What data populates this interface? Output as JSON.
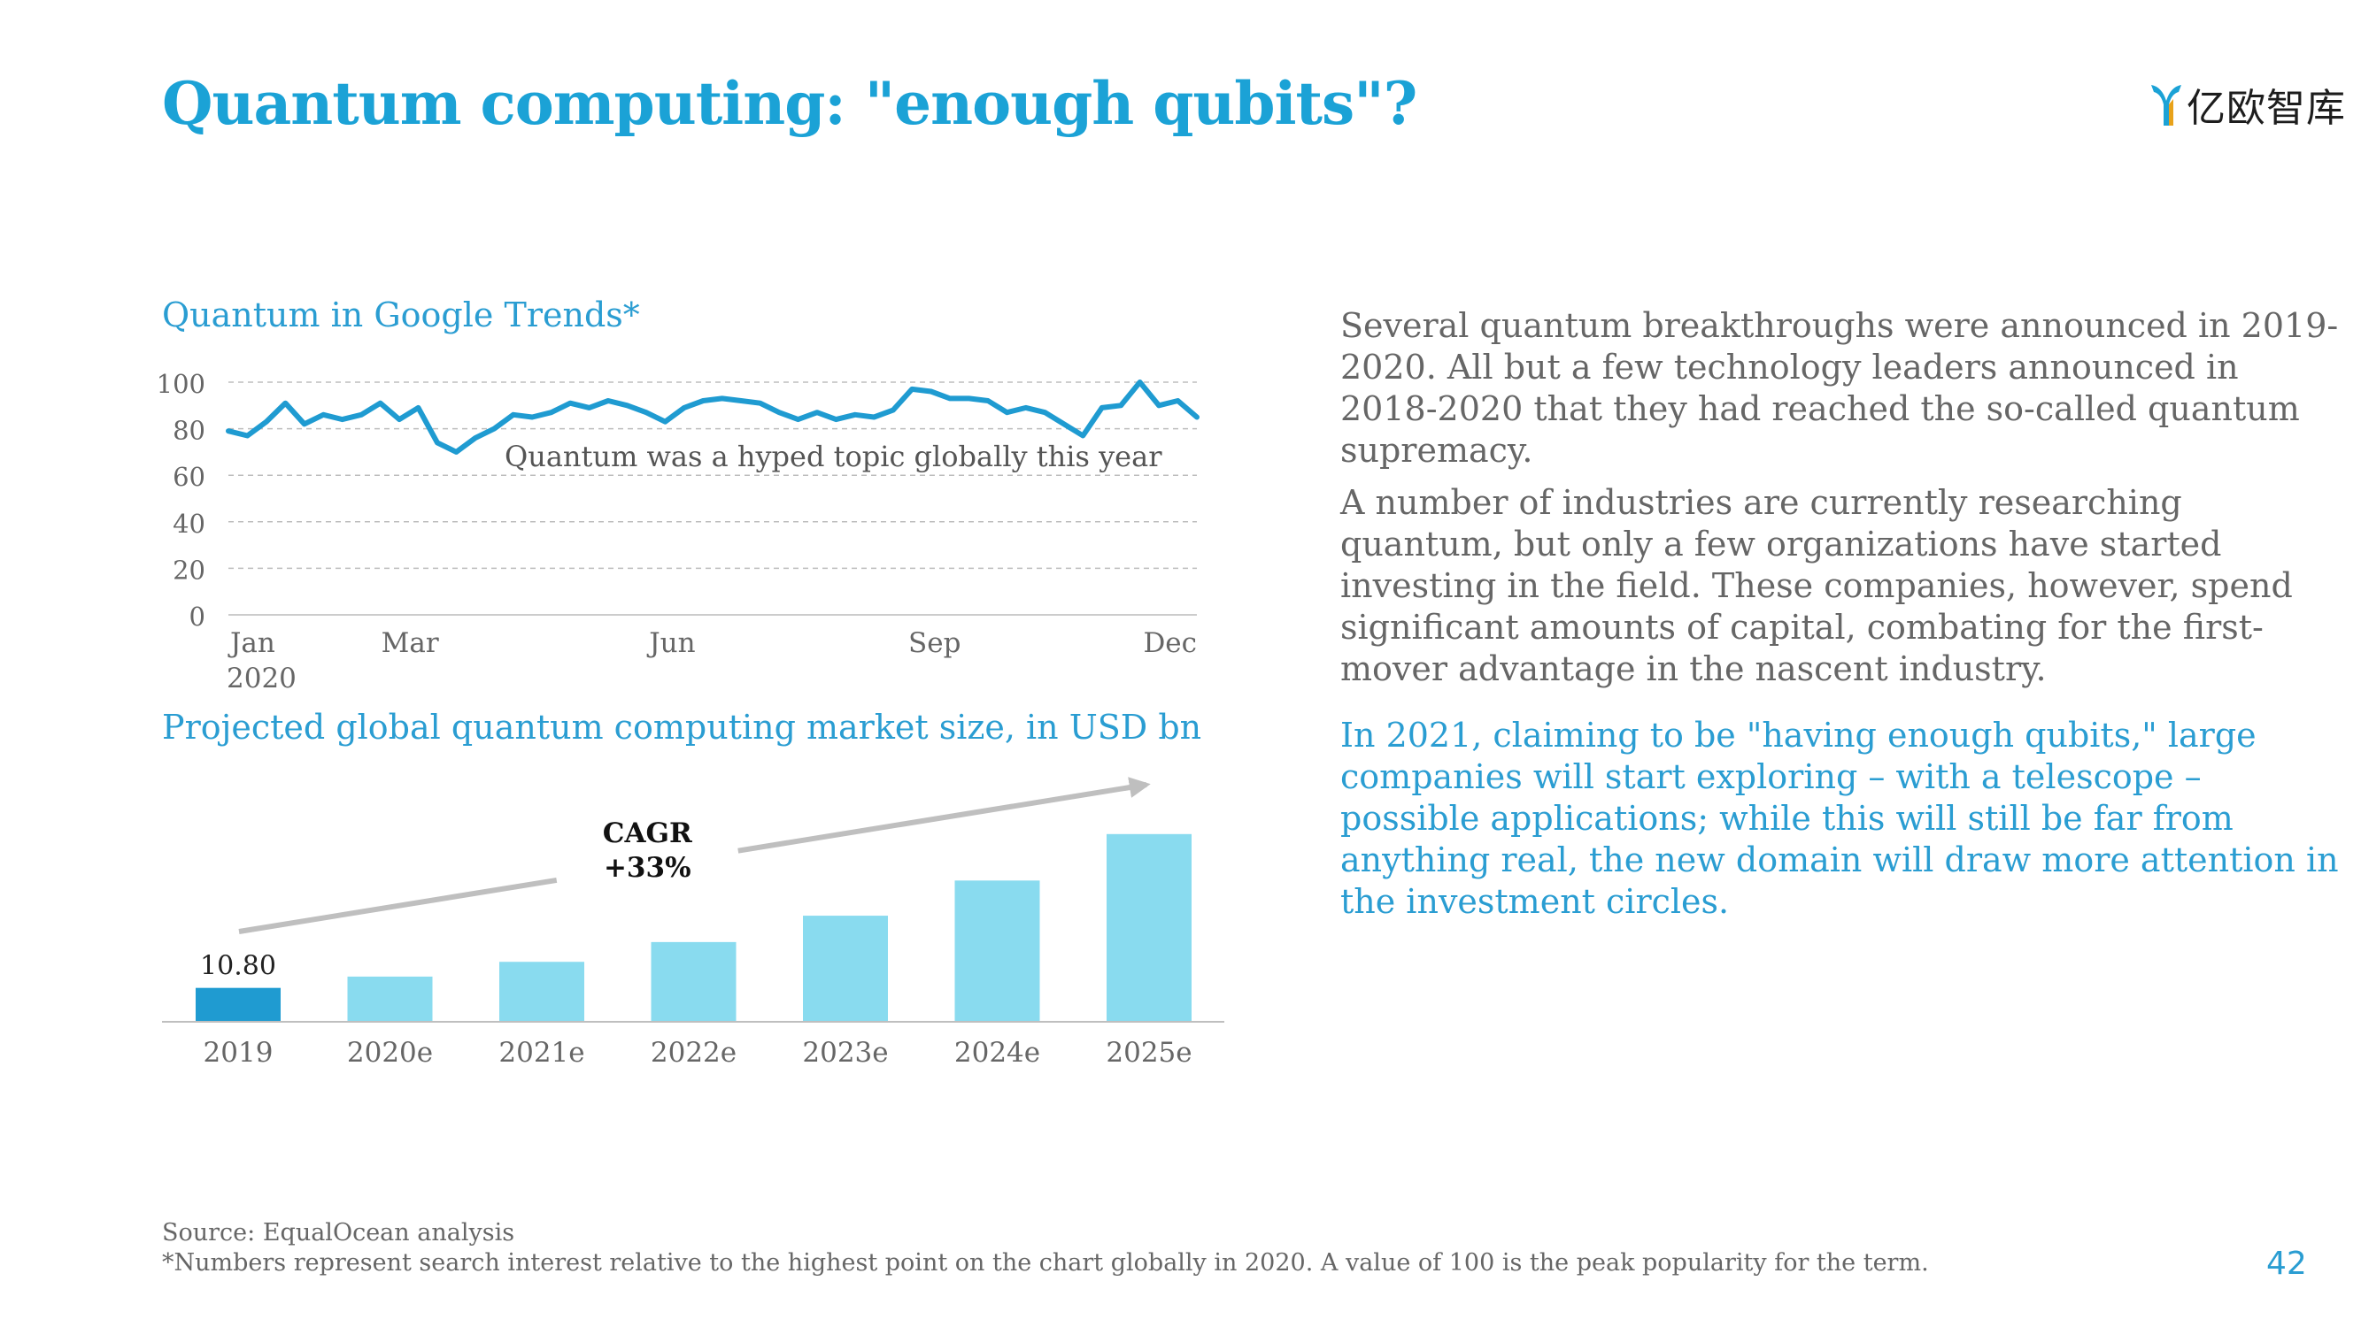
{
  "page": {
    "title": "Quantum computing: \"enough qubits\"?",
    "logo_text": "亿欧智库",
    "page_number": "42"
  },
  "colors": {
    "accent": "#1ba2d6",
    "line": "#1f9bd1",
    "bar_2019": "#1f9bd1",
    "bar_projected": "#89dbef",
    "arrow": "#bfbfbf",
    "body_text": "#666666"
  },
  "chart_data": [
    {
      "type": "line",
      "title": "Quantum in Google Trends*",
      "annotation": "Quantum was a hyped topic globally this year",
      "ylim": [
        0,
        100
      ],
      "yticks": [
        0,
        20,
        40,
        60,
        80,
        100
      ],
      "xlim": [
        0,
        48
      ],
      "xticks": [
        {
          "x": 0,
          "label": "Jan",
          "sublabel": "2020"
        },
        {
          "x": 9,
          "label": "Mar"
        },
        {
          "x": 22,
          "label": "Jun"
        },
        {
          "x": 35,
          "label": "Sep"
        },
        {
          "x": 48,
          "label": "Dec"
        }
      ],
      "grid": true,
      "series": [
        {
          "values": [
            79,
            77,
            83,
            91,
            82,
            86,
            84,
            86,
            91,
            84,
            89,
            74,
            70,
            76,
            80,
            86,
            85,
            87,
            91,
            89,
            92,
            90,
            87,
            83,
            89,
            92,
            93,
            92,
            91,
            87,
            84,
            87,
            84,
            86,
            85,
            88,
            97,
            96,
            93,
            93,
            92,
            87,
            89,
            87,
            82,
            77,
            89,
            90,
            100,
            90,
            92,
            85
          ]
        }
      ]
    },
    {
      "type": "bar",
      "title": "Projected global quantum computing market size, in USD bn",
      "categories": [
        "2019",
        "2020e",
        "2021e",
        "2022e",
        "2023e",
        "2024e",
        "2025e"
      ],
      "values": [
        10.8,
        14.4,
        19.1,
        25.4,
        33.8,
        45.0,
        59.8
      ],
      "data_labels": [
        "10.80",
        "",
        "",
        "",
        "",
        "",
        ""
      ],
      "annotation_line1": "CAGR",
      "annotation_line2": "+33%",
      "ylim": [
        0,
        62
      ]
    }
  ],
  "text": {
    "para1": "Several quantum breakthroughs were announced in 2019-2020. All but a few technology leaders announced in 2018-2020 that they had reached the so-called quantum supremacy.",
    "para2": "A number of industries are currently researching quantum, but only a few organizations have started investing in the field. These companies, however, spend significant amounts of capital, combating for the first-mover advantage in the nascent industry.",
    "para3": "In 2021, claiming to be \"having enough qubits,\" large companies will start exploring – with a telescope – possible applications; while this will still be far from anything real, the new domain will draw more attention in the investment circles."
  },
  "footer": {
    "source": "Source: EqualOcean analysis",
    "note": "*Numbers represent search interest relative to the highest point on the chart globally in 2020. A value of 100 is the peak popularity for the term."
  }
}
